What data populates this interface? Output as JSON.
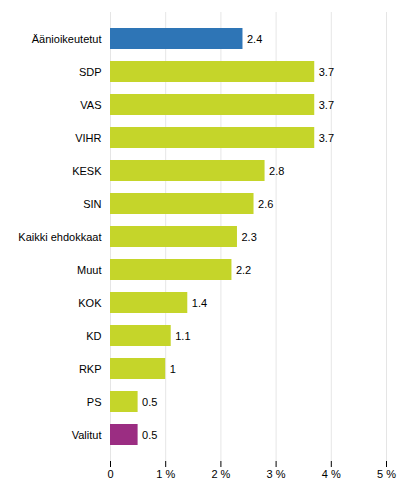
{
  "chart_data": {
    "type": "bar",
    "orientation": "horizontal",
    "categories": [
      "Äänioikeutetut",
      "SDP",
      "VAS",
      "VIHR",
      "KESK",
      "SIN",
      "Kaikki ehdokkaat",
      "Muut",
      "KOK",
      "KD",
      "RKP",
      "PS",
      "Valitut"
    ],
    "values": [
      2.4,
      3.7,
      3.7,
      3.7,
      2.8,
      2.6,
      2.3,
      2.2,
      1.4,
      1.1,
      1.0,
      0.5,
      0.5
    ],
    "value_labels": [
      "2.4",
      "3.7",
      "3.7",
      "3.7",
      "2.8",
      "2.6",
      "2.3",
      "2.2",
      "1.4",
      "1.1",
      "1",
      "0.5",
      "0.5"
    ],
    "colors": [
      "#2e75b6",
      "#c5d52a",
      "#c5d52a",
      "#c5d52a",
      "#c5d52a",
      "#c5d52a",
      "#c5d52a",
      "#c5d52a",
      "#c5d52a",
      "#c5d52a",
      "#c5d52a",
      "#c5d52a",
      "#9b2d82"
    ],
    "xlim": [
      0,
      5
    ],
    "xticks": [
      0,
      {
        "value": 1,
        "label": "1 %"
      },
      {
        "value": 2,
        "label": "2 %"
      },
      {
        "value": 3,
        "label": "3 %"
      },
      {
        "value": 4,
        "label": "4 %"
      },
      {
        "value": 5,
        "label": "5 %"
      }
    ],
    "grid": true,
    "data_labels": true
  }
}
